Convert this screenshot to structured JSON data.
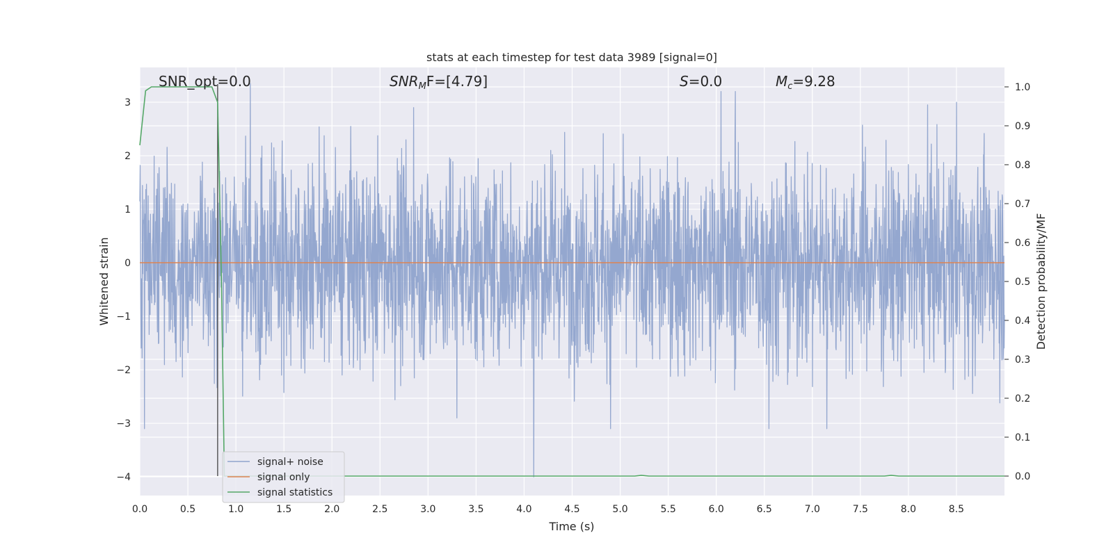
{
  "chart_data": {
    "type": "line",
    "title": "stats at each timestep for test data 3989 [signal=0]",
    "xlabel": "Time (s)",
    "ylabel": "Whitened strain",
    "ylabel_right": "Detection probability/MF",
    "xlim": [
      0.0,
      9.0
    ],
    "ylim": [
      -4.35,
      3.65
    ],
    "ylim_right": [
      -0.05,
      1.05
    ],
    "x_ticks": [
      0.0,
      0.5,
      1.0,
      1.5,
      2.0,
      2.5,
      3.0,
      3.5,
      4.0,
      4.5,
      5.0,
      5.5,
      6.0,
      6.5,
      7.0,
      7.5,
      8.0,
      8.5
    ],
    "x_tick_labels": [
      "0.0",
      "0.5",
      "1.0",
      "1.5",
      "2.0",
      "2.5",
      "3.0",
      "3.5",
      "4.0",
      "4.5",
      "5.0",
      "5.5",
      "6.0",
      "6.5",
      "7.0",
      "7.5",
      "8.0",
      "8.5"
    ],
    "y_ticks": [
      -4,
      -3,
      -2,
      -1,
      0,
      1,
      2,
      3
    ],
    "y_tick_labels": [
      "−4",
      "−3",
      "−2",
      "−1",
      "0",
      "1",
      "2",
      "3"
    ],
    "y_ticks_right": [
      0.0,
      0.1,
      0.2,
      0.3,
      0.4,
      0.5,
      0.6,
      0.7,
      0.8,
      0.9,
      1.0
    ],
    "y_tick_labels_right": [
      "0.0",
      "0.1",
      "0.2",
      "0.3",
      "0.4",
      "0.5",
      "0.6",
      "0.7",
      "0.8",
      "0.9",
      "1.0"
    ],
    "grid": true,
    "legend_position": "lower-left",
    "annotations": {
      "snr_opt": "SNR_opt=0.0",
      "snr_mf_name": "SNR",
      "snr_mf_sub": "M",
      "snr_mf_rest": "F=[4.79]",
      "s_name": "S",
      "s_rest": "=0.0",
      "mc_name": "M",
      "mc_sub": "c",
      "mc_rest": "=9.28"
    },
    "marker_line_x": 0.81,
    "series": [
      {
        "name": "signal+ noise",
        "color": "#8fa3cc",
        "axis": "left",
        "noise_sigma": 0.95,
        "spikes": [
          [
            0.05,
            -3.1
          ],
          [
            1.15,
            3.35
          ],
          [
            2.85,
            2.9
          ],
          [
            3.3,
            -2.9
          ],
          [
            4.1,
            -4.0
          ],
          [
            4.9,
            -3.1
          ],
          [
            6.05,
            3.2
          ],
          [
            6.2,
            3.2
          ],
          [
            6.55,
            -3.1
          ],
          [
            7.15,
            -3.1
          ],
          [
            8.2,
            2.95
          ],
          [
            8.5,
            3.0
          ]
        ]
      },
      {
        "name": "signal only",
        "color": "#dd8452",
        "axis": "left",
        "values": "zero",
        "x": [
          0.0,
          9.0
        ],
        "y": [
          0.0,
          0.0
        ]
      },
      {
        "name": "signal statistics",
        "color": "#55a868",
        "axis": "right",
        "x": [
          0.0,
          0.06,
          0.12,
          0.3,
          0.6,
          0.75,
          0.81,
          0.85,
          0.88,
          1.0,
          2.0,
          3.0,
          4.0,
          5.0,
          5.15,
          5.22,
          5.3,
          6.0,
          7.0,
          7.75,
          7.82,
          7.9,
          8.5,
          9.0
        ],
        "y": [
          0.85,
          0.99,
          1.0,
          1.0,
          1.0,
          1.0,
          0.96,
          0.5,
          0.0,
          0.0,
          0.0,
          0.0,
          0.0,
          0.0,
          0.0,
          0.002,
          0.0,
          0.0,
          0.0,
          0.0,
          0.002,
          0.0,
          0.0,
          0.0
        ]
      }
    ]
  }
}
